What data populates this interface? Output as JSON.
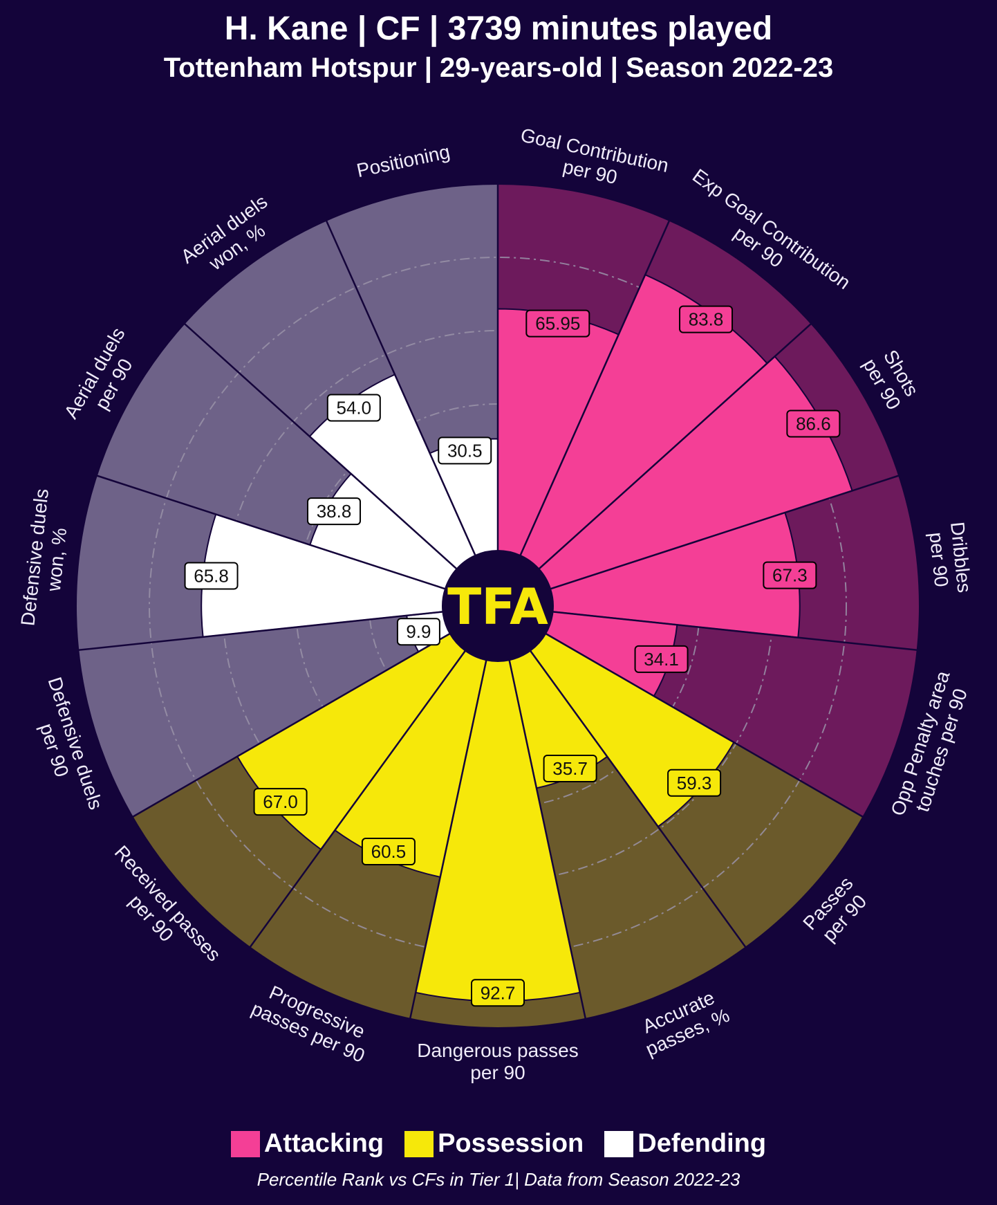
{
  "header": {
    "title": "H. Kane | CF | 3739 minutes played",
    "subtitle": "Tottenham Hotspur | 29-years-old | Season 2022-23"
  },
  "logo": {
    "text": "TFA"
  },
  "legend": [
    {
      "label": "Attacking",
      "color": "#f43f96"
    },
    {
      "label": "Possession",
      "color": "#f6e80a"
    },
    {
      "label": "Defending",
      "color": "#ffffff"
    }
  ],
  "footnote": "Percentile Rank vs CFs in Tier 1| Data from Season 2022-23",
  "colors": {
    "background": "#14043a",
    "attacking_bg": "#6d1a5c",
    "possession_bg": "#6b5a2b",
    "defending_bg": "#6e6288",
    "attacking": "#f43f96",
    "possession": "#f6e80a",
    "defending": "#ffffff",
    "grid": "#9a93a8"
  },
  "chart_data": {
    "type": "polar-bar",
    "range": [
      0,
      100
    ],
    "categories": [
      {
        "label": [
          "Goal Contribution",
          "per 90"
        ],
        "value": 65.95,
        "group": "Attacking"
      },
      {
        "label": [
          "Exp Goal Contribution",
          "per 90"
        ],
        "value": 83.8,
        "group": "Attacking"
      },
      {
        "label": [
          "Shots",
          "per 90"
        ],
        "value": 86.6,
        "group": "Attacking"
      },
      {
        "label": [
          "Dribbles",
          "per 90"
        ],
        "value": 67.3,
        "group": "Attacking"
      },
      {
        "label": [
          "Opp Penalty area",
          "touches per 90"
        ],
        "value": 34.1,
        "group": "Attacking"
      },
      {
        "label": [
          "Passes",
          "per 90"
        ],
        "value": 59.3,
        "group": "Possession"
      },
      {
        "label": [
          "Accurate",
          "passes, %"
        ],
        "value": 35.7,
        "group": "Possession"
      },
      {
        "label": [
          "Dangerous passes",
          "per 90"
        ],
        "value": 92.7,
        "group": "Possession"
      },
      {
        "label": [
          "Progressive",
          "passes per 90"
        ],
        "value": 60.5,
        "group": "Possession"
      },
      {
        "label": [
          "Received passes",
          "per 90"
        ],
        "value": 67.0,
        "group": "Possession"
      },
      {
        "label": [
          "Defensive duels",
          "per 90"
        ],
        "value": 9.9,
        "group": "Defending"
      },
      {
        "label": [
          "Defensive duels",
          "won, %"
        ],
        "value": 65.8,
        "group": "Defending"
      },
      {
        "label": [
          "Aerial duels",
          "per 90"
        ],
        "value": 38.8,
        "group": "Defending"
      },
      {
        "label": [
          "Aerial duels",
          "won, %"
        ],
        "value": 54.0,
        "group": "Defending"
      },
      {
        "label": [
          "Positioning"
        ],
        "value": 30.5,
        "group": "Defending"
      }
    ],
    "value_labels": [
      "65.95",
      "83.8",
      "86.6",
      "67.3",
      "34.1",
      "59.3",
      "35.7",
      "92.7",
      "60.5",
      "67.0",
      "9.9",
      "65.8",
      "38.8",
      "54.0",
      "30.5"
    ]
  }
}
